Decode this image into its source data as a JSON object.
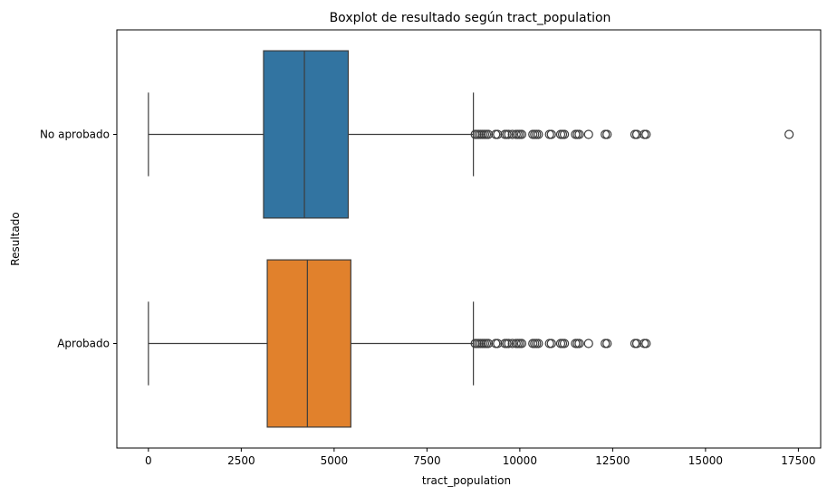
{
  "chart_data": {
    "type": "boxplot",
    "orientation": "horizontal",
    "title": "Boxplot de resultado según tract_population",
    "xlabel": "tract_population",
    "ylabel": "Resultado",
    "xlim": [
      -850,
      18100
    ],
    "xticks": [
      0,
      2500,
      5000,
      7500,
      10000,
      12500,
      15000,
      17500
    ],
    "xtick_labels": [
      "0",
      "2500",
      "5000",
      "7500",
      "10000",
      "12500",
      "15000",
      "17500"
    ],
    "grid": false,
    "legend": "none",
    "categories": [
      "No aprobado",
      "Aprobado"
    ],
    "series": [
      {
        "category": "No aprobado",
        "color": "#3274a1",
        "whisker_low": 0,
        "q1": 3100,
        "median": 4200,
        "q3": 5380,
        "whisker_high": 8750,
        "outliers": [
          8800,
          8850,
          8900,
          8950,
          9000,
          9050,
          9100,
          9150,
          9350,
          9400,
          9600,
          9650,
          9700,
          9800,
          9900,
          9950,
          10000,
          10050,
          10350,
          10400,
          10450,
          10500,
          10800,
          10850,
          11100,
          11150,
          11200,
          11500,
          11550,
          11600,
          11850,
          12300,
          12350,
          13100,
          13150,
          13350,
          13400,
          17250
        ]
      },
      {
        "category": "Aprobado",
        "color": "#e1812c",
        "whisker_low": 0,
        "q1": 3200,
        "median": 4280,
        "q3": 5450,
        "whisker_high": 8750,
        "outliers": [
          8800,
          8850,
          8900,
          8950,
          9000,
          9050,
          9100,
          9150,
          9350,
          9400,
          9600,
          9650,
          9700,
          9800,
          9900,
          9950,
          10000,
          10050,
          10350,
          10400,
          10450,
          10500,
          10800,
          10850,
          11100,
          11150,
          11200,
          11500,
          11550,
          11600,
          11850,
          12300,
          12350,
          13100,
          13150,
          13350,
          13400
        ]
      }
    ]
  }
}
